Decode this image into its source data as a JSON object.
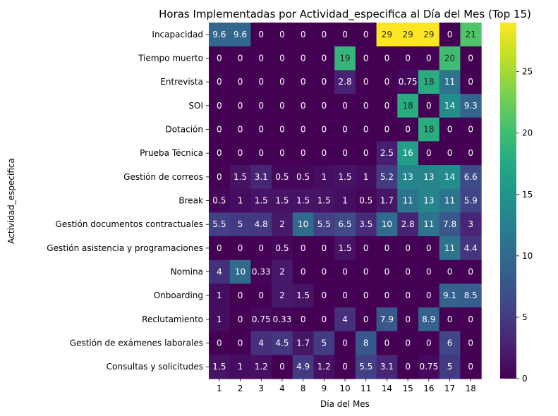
{
  "chart_data": {
    "type": "heatmap",
    "title": "Horas Implementadas por Actividad_especifica al Día del Mes (Top 15)",
    "xlabel": "Día del Mes",
    "ylabel": "Actividad_especifica",
    "x": [
      "1",
      "2",
      "3",
      "4",
      "8",
      "9",
      "10",
      "11",
      "14",
      "15",
      "16",
      "17",
      "18"
    ],
    "y": [
      "Incapacidad",
      "Tiempo muerto",
      "Entrevista",
      "SOI",
      "Dotación",
      "Prueba Técnica",
      "Gestión de correos",
      "Break",
      "Gestión documentos contractuales",
      "Gestión asistencia y programaciones",
      "Nomina",
      "Onboarding",
      "Reclutamiento",
      "Gestión de exámenes laborales",
      "Consultas y solicitudes"
    ],
    "values": [
      [
        9.6,
        9.6,
        0,
        0,
        0,
        0,
        0,
        0,
        29,
        29,
        29,
        0,
        21
      ],
      [
        0,
        0,
        0,
        0,
        0,
        0,
        19,
        0,
        0,
        0,
        0,
        20,
        0
      ],
      [
        0,
        0,
        0,
        0,
        0,
        0,
        2.8,
        0,
        0,
        0.75,
        18,
        11,
        0
      ],
      [
        0,
        0,
        0,
        0,
        0,
        0,
        0,
        0,
        0,
        18,
        0,
        14,
        9.3
      ],
      [
        0,
        0,
        0,
        0,
        0,
        0,
        0,
        0,
        0,
        0,
        18,
        0,
        0
      ],
      [
        0,
        0,
        0,
        0,
        0,
        0,
        0,
        0,
        2.5,
        16,
        0,
        0,
        0
      ],
      [
        0,
        1.5,
        3.1,
        0.5,
        0.5,
        1,
        1.5,
        1,
        5.2,
        13,
        13,
        14,
        6.6
      ],
      [
        0.5,
        1,
        1.5,
        1.5,
        1.5,
        1.5,
        1,
        0.5,
        1.7,
        11,
        13,
        11,
        5.9
      ],
      [
        5.5,
        5,
        4.8,
        2,
        10,
        5.5,
        6.5,
        3.5,
        10,
        2.8,
        11,
        7.8,
        3
      ],
      [
        0,
        0,
        0,
        0.5,
        0,
        0,
        1.5,
        0,
        0,
        0,
        0,
        11,
        4.4
      ],
      [
        4,
        10,
        0.33,
        2,
        0,
        0,
        0,
        0,
        0,
        0,
        0,
        0,
        0
      ],
      [
        1,
        0,
        0,
        2,
        1.5,
        0,
        0,
        0,
        0,
        0,
        0,
        9.1,
        8.5
      ],
      [
        1,
        0,
        0.75,
        0.33,
        0,
        0,
        4,
        0,
        7.9,
        0,
        8.9,
        0,
        0
      ],
      [
        0,
        0,
        4,
        4.5,
        1.7,
        5,
        0,
        8,
        0,
        0,
        0,
        6,
        0
      ],
      [
        1.5,
        1,
        1.2,
        0,
        4.9,
        1.2,
        0,
        5.5,
        3.1,
        0,
        0.75,
        5,
        0
      ]
    ],
    "vmin": 0,
    "vmax": 29,
    "colormap": "viridis",
    "colorbar_ticks": [
      0,
      5,
      10,
      15,
      20,
      25
    ]
  }
}
